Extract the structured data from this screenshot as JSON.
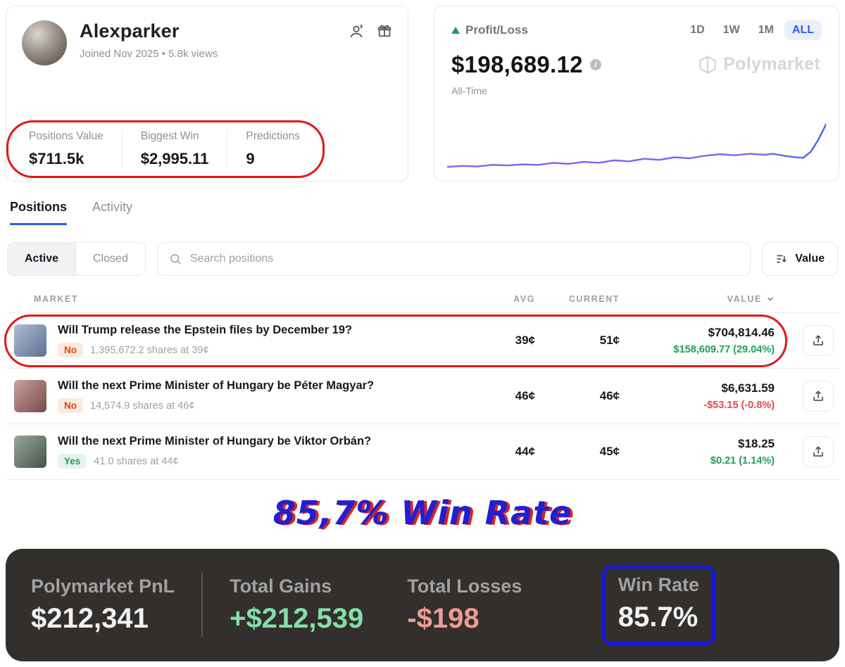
{
  "profile": {
    "name": "Alexparker",
    "meta": "Joined Nov 2025  •  5.8k views",
    "stats": [
      {
        "label": "Positions Value",
        "value": "$711.5k"
      },
      {
        "label": "Biggest Win",
        "value": "$2,995.11"
      },
      {
        "label": "Predictions",
        "value": "9"
      }
    ]
  },
  "pnl": {
    "title": "Profit/Loss",
    "ranges": [
      "1D",
      "1W",
      "1M",
      "ALL"
    ],
    "selected_range": "ALL",
    "amount": "$198,689.12",
    "info_glyph": "i",
    "period": "All-Time",
    "watermark": "Polymarket"
  },
  "chart_data": {
    "type": "line",
    "title": "Profit/Loss All-Time sparkline",
    "x_axis": "time (hidden)",
    "y_axis": "profit (hidden)",
    "points": [
      [
        0,
        8
      ],
      [
        4,
        10
      ],
      [
        8,
        9
      ],
      [
        12,
        12
      ],
      [
        16,
        11
      ],
      [
        20,
        13
      ],
      [
        24,
        12
      ],
      [
        28,
        16
      ],
      [
        32,
        14
      ],
      [
        36,
        18
      ],
      [
        40,
        16
      ],
      [
        44,
        21
      ],
      [
        48,
        19
      ],
      [
        52,
        24
      ],
      [
        56,
        22
      ],
      [
        60,
        27
      ],
      [
        64,
        25
      ],
      [
        68,
        30
      ],
      [
        72,
        33
      ],
      [
        76,
        31
      ],
      [
        80,
        34
      ],
      [
        84,
        32
      ],
      [
        86,
        34
      ],
      [
        89,
        30
      ],
      [
        92,
        27
      ],
      [
        94,
        26
      ],
      [
        96,
        38
      ],
      [
        98,
        62
      ],
      [
        100,
        92
      ]
    ],
    "line_colors": [
      "#8b5cf6",
      "#3b63f3"
    ]
  },
  "tabs": [
    {
      "label": "Positions",
      "active": true
    },
    {
      "label": "Activity",
      "active": false
    }
  ],
  "filters": {
    "segments": [
      "Active",
      "Closed"
    ],
    "selected_segment": "Active",
    "search_placeholder": "Search positions",
    "sort_label": "Value"
  },
  "table": {
    "headers": [
      "MARKET",
      "AVG",
      "CURRENT",
      "VALUE"
    ],
    "rows": [
      {
        "title": "Will Trump release the Epstein files by December 19?",
        "side": "No",
        "shares": "1,395,672.2 shares at 39¢",
        "avg": "39¢",
        "current": "51¢",
        "value": "$704,814.46",
        "change": "$158,609.77 (29.04%)",
        "change_positive": true
      },
      {
        "title": "Will the next Prime Minister of Hungary be Péter Magyar?",
        "side": "No",
        "shares": "14,574.9 shares at 46¢",
        "avg": "46¢",
        "current": "46¢",
        "value": "$6,631.59",
        "change": "-$53.15 (-0.8%)",
        "change_positive": false
      },
      {
        "title": "Will the next Prime Minister of Hungary be Viktor Orbán?",
        "side": "Yes",
        "shares": "41.0 shares at 44¢",
        "avg": "44¢",
        "current": "45¢",
        "value": "$18.25",
        "change": "$0.21 (1.14%)",
        "change_positive": true
      }
    ]
  },
  "annotation": "85,7% Win Rate",
  "summary": {
    "items": [
      {
        "label": "Polymarket PnL",
        "value": "$212,341",
        "tone": "neutral"
      },
      {
        "label": "Total Gains",
        "value": "+$212,539",
        "tone": "positive"
      },
      {
        "label": "Total Losses",
        "value": "-$198",
        "tone": "negative"
      },
      {
        "label": "Win Rate",
        "value": "85.7%",
        "tone": "neutral"
      }
    ]
  },
  "colors": {
    "accent_blue": "#2d5bf0",
    "positive_green": "#1f9d5b",
    "negative_red": "#e5484d",
    "no_badge": "#e64800",
    "yes_badge": "#219653",
    "gains_text": "#82dfa6",
    "losses_text": "#ef9b93",
    "annotation_blue": "#2020cf",
    "annotation_red": "#dd2222",
    "summary_bg": "#322f2d"
  }
}
